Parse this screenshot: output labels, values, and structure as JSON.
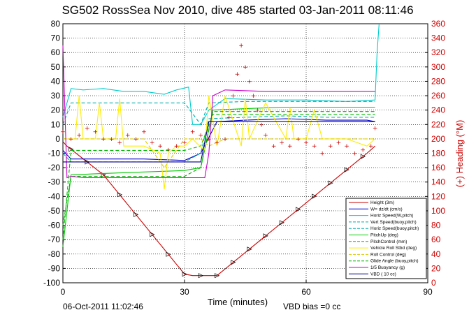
{
  "title": "SG502 RossSea Nov 2010, dive 485 started 03-Jan-2011 08:11:46",
  "footer": {
    "timestamp": "06-Oct-2011 11:02:46",
    "vbd_bias": "VBD bias =0 cc"
  },
  "colors": {
    "height": "#cc0000",
    "w": "#0000cc",
    "horiz": "#00cccc",
    "vert": "#00aaaa",
    "pitchup": "#00cc00",
    "pitchcontrol": "#00bb00",
    "rollvehicle": "#ffee00",
    "rollcontrol": "#ddcc00",
    "glide": "#00aa00",
    "buoy": "#cc00cc",
    "vbd": "#000088",
    "heading": "#cc0000"
  },
  "chart_data": {
    "type": "line",
    "xlabel": "Time (minutes)",
    "ylabel_right": "(+) Heading (°M)",
    "xlim": [
      0,
      90
    ],
    "ylim": [
      -100,
      80
    ],
    "ylim_right": [
      0,
      360
    ],
    "x_ticks": [
      "0",
      "30",
      "60",
      "90"
    ],
    "x_tick_values": [
      0,
      30,
      60,
      90
    ],
    "y_ticks": [
      80,
      70,
      60,
      50,
      40,
      30,
      20,
      10,
      0,
      -10,
      -20,
      -30,
      -40,
      -50,
      -60,
      -70,
      -80,
      -90,
      -100
    ],
    "y2_ticks": [
      360,
      340,
      320,
      300,
      280,
      260,
      240,
      220,
      200,
      180,
      160,
      140,
      120,
      100,
      80,
      60,
      40,
      20,
      0
    ],
    "grid": true,
    "legend_position": "bottom-right",
    "legend": [
      "Height (3m)",
      "W= dz/dt (cm/s)",
      "Horiz Speed(W,pitch)",
      "Vert Speed(buoy,pitch)",
      "Horiz Speed(buoy,pitch)",
      "PitchUp (deg)",
      "PitchControl (mm)",
      "Vehicle Roll Stbd (deg)",
      "Roll Control (deg)",
      "Glide Angle (buoy,pitch)",
      "1/5 Buoyancy (g)",
      "VBD ( 10 cc)"
    ],
    "series": [
      {
        "name": "Height (3m)",
        "style": "solid",
        "colorKey": "height",
        "marker": "triangle",
        "x": [
          0,
          1,
          10,
          30,
          32,
          38,
          75,
          77
        ],
        "y": [
          -2,
          -5,
          -25,
          -94,
          -95,
          -95,
          -10,
          -5
        ]
      },
      {
        "name": "W= dz/dt (cm/s)",
        "style": "solid",
        "colorKey": "w",
        "x": [
          0,
          2,
          5,
          10,
          20,
          30,
          34,
          38,
          45,
          55,
          65,
          75,
          77
        ],
        "y": [
          -8,
          -14,
          -14,
          -14,
          -14,
          -15,
          -10,
          12,
          13,
          14,
          13,
          13,
          12
        ]
      },
      {
        "name": "Horiz Speed(W,pitch)",
        "style": "solid",
        "colorKey": "horiz",
        "x": [
          0,
          2,
          5,
          10,
          15,
          20,
          25,
          28,
          31,
          32,
          34,
          36,
          40,
          50,
          60,
          70,
          77,
          77.5,
          78
        ],
        "y": [
          15,
          35,
          34,
          35,
          33,
          33,
          31,
          34,
          36,
          10,
          10,
          20,
          28,
          27,
          27,
          26,
          27,
          60,
          80
        ]
      },
      {
        "name": "Vert Speed(buoy,pitch)",
        "style": "dashed",
        "colorKey": "vert",
        "x": [
          0,
          2,
          10,
          20,
          30,
          34,
          36,
          45,
          55,
          65,
          77
        ],
        "y": [
          -10,
          -16,
          -16,
          -16,
          -16,
          -10,
          14,
          15,
          16,
          15,
          15
        ]
      },
      {
        "name": "Horiz Speed(buoy,pitch)",
        "style": "dashed",
        "colorKey": "vert",
        "x": [
          0,
          2,
          10,
          20,
          30,
          34,
          36,
          45,
          55,
          65,
          77
        ],
        "y": [
          10,
          25,
          25,
          25,
          25,
          10,
          25,
          26,
          26,
          26,
          26
        ]
      },
      {
        "name": "PitchUp (deg)",
        "style": "solid",
        "colorKey": "pitchup",
        "x": [
          0,
          2,
          10,
          20,
          30,
          34,
          37,
          45,
          55,
          65,
          77
        ],
        "y": [
          -75,
          -25,
          -24,
          -23,
          -22,
          -20,
          20,
          21,
          22,
          22,
          22
        ]
      },
      {
        "name": "PitchControl (mm)",
        "style": "dashed",
        "colorKey": "pitchcontrol",
        "x": [
          0,
          2,
          10,
          20,
          30,
          34,
          37,
          45,
          55,
          65,
          77
        ],
        "y": [
          -70,
          -8,
          -8,
          -8,
          -8,
          -5,
          17,
          17,
          17,
          17,
          17
        ]
      },
      {
        "name": "Vehicle Roll Stbd (deg)",
        "style": "solid",
        "colorKey": "rollvehicle",
        "x": [
          0,
          3,
          4,
          5,
          8,
          9,
          10,
          13,
          14,
          15,
          20,
          24,
          25,
          26,
          28,
          30,
          32,
          33,
          35,
          36,
          38,
          40,
          44,
          45,
          46,
          50,
          55,
          56,
          57,
          60,
          62,
          64,
          70,
          75,
          77
        ],
        "y": [
          0,
          0,
          30,
          0,
          0,
          25,
          0,
          0,
          28,
          -5,
          -5,
          -10,
          -35,
          -10,
          -5,
          -5,
          0,
          -3,
          -8,
          30,
          -5,
          30,
          -5,
          28,
          0,
          25,
          0,
          22,
          0,
          0,
          20,
          0,
          0,
          -5,
          0
        ]
      },
      {
        "name": "Roll Control (deg)",
        "style": "dashed",
        "colorKey": "rollcontrol",
        "x": [
          0,
          5,
          10,
          20,
          25,
          30,
          34,
          36,
          40,
          50,
          60,
          70,
          77
        ],
        "y": [
          0,
          0,
          0,
          0,
          -20,
          0,
          0,
          -5,
          0,
          0,
          0,
          0,
          0
        ]
      },
      {
        "name": "Glide Angle (buoy,pitch)",
        "style": "dashed",
        "colorKey": "glide",
        "x": [
          0,
          2,
          10,
          20,
          30,
          34,
          37,
          45,
          55,
          65,
          77
        ],
        "y": [
          -60,
          -26,
          -26,
          -26,
          -26,
          -20,
          19,
          19,
          19,
          19,
          19
        ]
      },
      {
        "name": "1/5 Buoyancy (g)",
        "style": "solid",
        "colorKey": "buoy",
        "x": [
          0,
          1,
          2,
          5,
          10,
          20,
          30,
          35,
          36,
          37,
          40,
          50,
          60,
          70,
          77
        ],
        "y": [
          65,
          -27,
          -26,
          -27,
          -27,
          -27,
          -27,
          -27,
          -10,
          30,
          34,
          33,
          33,
          33,
          33
        ]
      },
      {
        "name": "VBD ( 10 cc)",
        "style": "solid",
        "colorKey": "vbd",
        "x": [
          0,
          2,
          10,
          20,
          30,
          34,
          36,
          40,
          50,
          60,
          70,
          77
        ],
        "y": [
          -16,
          -16,
          -16,
          -16,
          -16,
          -16,
          12,
          12,
          12,
          12,
          12,
          12
        ]
      },
      {
        "name": "Heading",
        "style": "points",
        "colorKey": "heading",
        "axis": "right",
        "x": [
          0,
          2,
          4,
          6,
          8,
          10,
          12,
          14,
          16,
          18,
          20,
          22,
          24,
          26,
          28,
          30,
          32,
          34,
          36,
          38,
          40,
          41,
          42,
          43,
          44,
          45,
          46,
          47,
          48,
          49,
          50,
          52,
          54,
          56,
          58,
          60,
          62,
          64,
          66,
          68,
          70,
          72,
          74,
          76,
          77
        ],
        "y": [
          210,
          200,
          205,
          215,
          210,
          200,
          200,
          195,
          205,
          200,
          210,
          195,
          190,
          185,
          190,
          195,
          210,
          205,
          200,
          195,
          200,
          230,
          260,
          290,
          330,
          300,
          280,
          260,
          240,
          220,
          205,
          190,
          195,
          190,
          200,
          195,
          190,
          180,
          190,
          195,
          190,
          180,
          185,
          190,
          215
        ]
      }
    ]
  }
}
